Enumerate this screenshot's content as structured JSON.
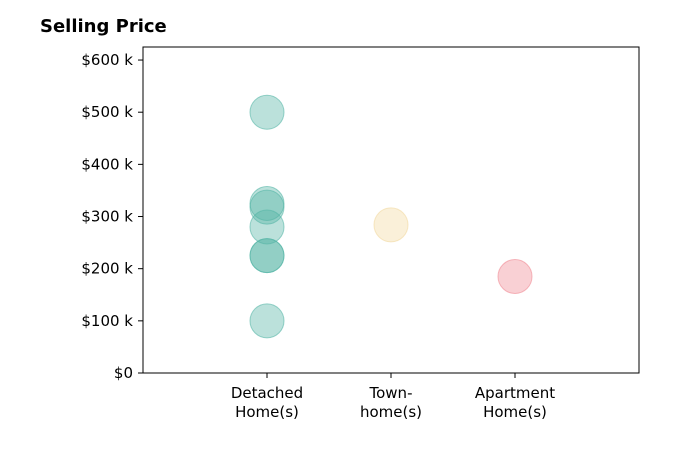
{
  "chart_data": {
    "type": "scatter",
    "title": "Selling Price",
    "categories": [
      "Detached\nHome(s)",
      "Town-\nhome(s)",
      "Apartment\nHome(s)"
    ],
    "ylim": [
      0,
      625000
    ],
    "y_ticks": [
      {
        "value": 0,
        "label": "$0"
      },
      {
        "value": 100000,
        "label": "$100 k"
      },
      {
        "value": 200000,
        "label": "$200 k"
      },
      {
        "value": 300000,
        "label": "$300 k"
      },
      {
        "value": 400000,
        "label": "$400 k"
      },
      {
        "value": 500000,
        "label": "$500 k"
      },
      {
        "value": 600000,
        "label": "$600 k"
      }
    ],
    "grid": false,
    "points": [
      {
        "category": 0,
        "y": 500000
      },
      {
        "category": 0,
        "y": 325000
      },
      {
        "category": 0,
        "y": 318000
      },
      {
        "category": 0,
        "y": 280000
      },
      {
        "category": 0,
        "y": 225000
      },
      {
        "category": 0,
        "y": 225000
      },
      {
        "category": 0,
        "y": 100000
      },
      {
        "category": 1,
        "y": 284000
      },
      {
        "category": 2,
        "y": 185000
      }
    ],
    "category_colors": [
      "#55b5a6",
      "#f2d9a0",
      "#f08a94"
    ],
    "marker_alpha": 0.4
  }
}
